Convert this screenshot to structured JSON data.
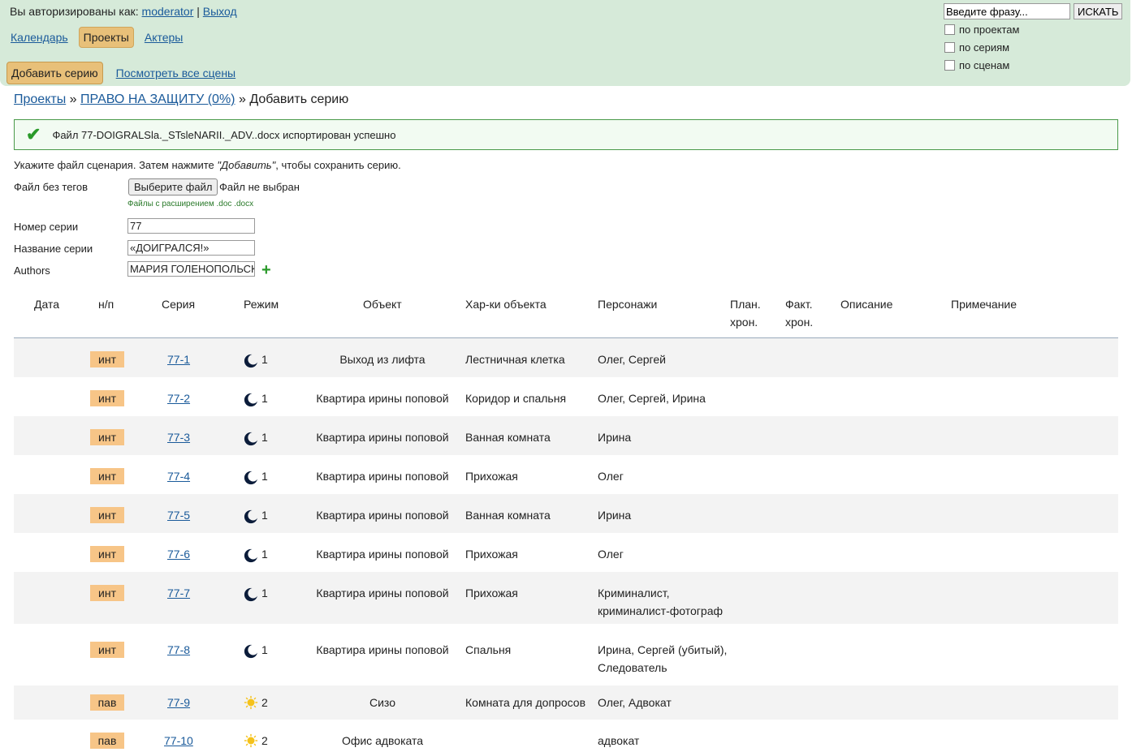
{
  "header": {
    "auth_prefix": "Вы авторизированы как:",
    "user": "moderator",
    "sep": "|",
    "logout": "Выход",
    "nav": [
      "Календарь",
      "Проекты",
      "Актеры"
    ],
    "add_button": "Добавить серию",
    "view_scenes": "Посмотреть все сцены",
    "search_placeholder": "Введите фразу...",
    "search_button": "ИСКАТЬ",
    "filters": [
      "по проектам",
      "по сериям",
      "по сценам"
    ]
  },
  "breadcrumb": {
    "projects": "Проекты",
    "sep": "»",
    "project": "ПРАВО НА ЗАЩИТУ (0%)",
    "current": "Добавить серию"
  },
  "notice": "Файл 77-DOIGRALSla._STsleNARII._ADV..docx испортирован успешно",
  "form": {
    "instruction_pre": "Укажите файл сценария. Затем нажмите ",
    "instruction_em": "\"Добавить\"",
    "instruction_post": ", чтобы сохранить серию.",
    "file_label": "Файл без тегов",
    "file_button": "Выберите файл",
    "file_none": "Файл не выбран",
    "file_hint": "Файлы с расширением .doc .docx",
    "number_label": "Номер серии",
    "number_value": "77",
    "title_label": "Название серии",
    "title_value": "«ДОИГРАЛСЯ!»",
    "authors_label": "Authors",
    "authors_value": "МАРИЯ ГОЛЕНОПОЛЬСКАЯ",
    "add_author": "+"
  },
  "table": {
    "headers": {
      "date": "Дата",
      "num": "н/п",
      "series": "Серия",
      "mode": "Режим",
      "object": "Объект",
      "object_props": "Хар-ки объекта",
      "characters": "Персонажи",
      "plan_1": "План.",
      "plan_2": "хрон.",
      "fact_1": "Факт.",
      "fact_2": "хрон.",
      "description": "Описание",
      "note": "Примечание"
    },
    "rows": [
      {
        "tag": "инт",
        "series": "77-1",
        "mode_icon": "moon-icon",
        "mode": "1",
        "object": "Выход из лифта",
        "props": "Лестничная клетка",
        "chars": [
          "Олег, Сергей"
        ]
      },
      {
        "tag": "инт",
        "series": "77-2",
        "mode_icon": "moon-icon",
        "mode": "1",
        "object": "Квартира ирины поповой",
        "props": "Коридор и спальня",
        "chars": [
          "Олег, Сергей, Ирина"
        ]
      },
      {
        "tag": "инт",
        "series": "77-3",
        "mode_icon": "moon-icon",
        "mode": "1",
        "object": "Квартира ирины поповой",
        "props": "Ванная комната",
        "chars": [
          "Ирина"
        ]
      },
      {
        "tag": "инт",
        "series": "77-4",
        "mode_icon": "moon-icon",
        "mode": "1",
        "object": "Квартира ирины поповой",
        "props": "Прихожая",
        "chars": [
          "Олег"
        ]
      },
      {
        "tag": "инт",
        "series": "77-5",
        "mode_icon": "moon-icon",
        "mode": "1",
        "object": "Квартира ирины поповой",
        "props": "Ванная комната",
        "chars": [
          "Ирина"
        ]
      },
      {
        "tag": "инт",
        "series": "77-6",
        "mode_icon": "moon-icon",
        "mode": "1",
        "object": "Квартира ирины поповой",
        "props": "Прихожая",
        "chars": [
          "Олег"
        ]
      },
      {
        "tag": "инт",
        "series": "77-7",
        "mode_icon": "moon-icon",
        "mode": "1",
        "object": "Квартира ирины поповой",
        "props": "Прихожая",
        "chars": [
          "Криминалист,",
          "криминалист-фотограф"
        ]
      },
      {
        "tag": "инт",
        "series": "77-8",
        "mode_icon": "moon-icon",
        "mode": "1",
        "object": "Квартира ирины поповой",
        "props": "Спальня",
        "chars": [
          "Ирина, Сергей (убитый),",
          "Следователь"
        ]
      },
      {
        "tag": "пав",
        "series": "77-9",
        "mode_icon": "sun-icon",
        "mode": "2",
        "object": "Сизо",
        "props": "Комната для допросов",
        "chars": [
          "Олег, Адвокат"
        ]
      },
      {
        "tag": "пав",
        "series": "77-10",
        "mode_icon": "sun-icon",
        "mode": "2",
        "object": "Офис адвоката",
        "props": "",
        "chars": [
          "адвокат"
        ]
      }
    ]
  }
}
